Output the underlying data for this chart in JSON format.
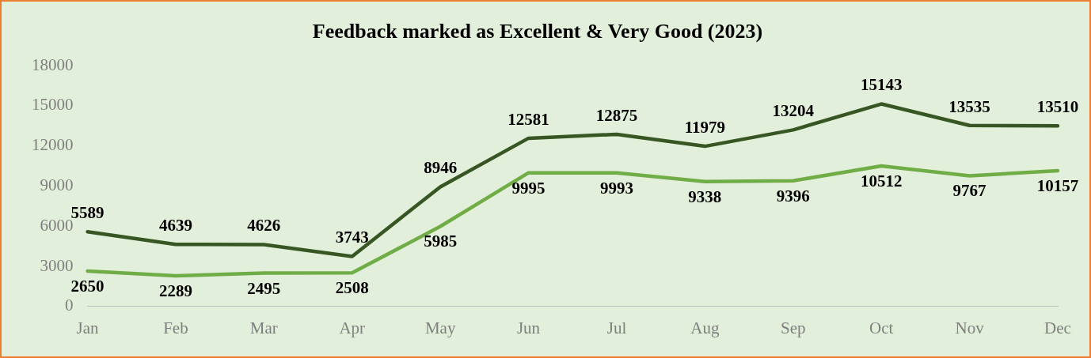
{
  "chart_data": {
    "type": "line",
    "title": "Feedback marked as Excellent & Very Good (2023)",
    "categories": [
      "Jan",
      "Feb",
      "Mar",
      "Apr",
      "May",
      "Jun",
      "Jul",
      "Aug",
      "Sep",
      "Oct",
      "Nov",
      "Dec"
    ],
    "series": [
      {
        "color": "#375623",
        "values": [
          5589,
          4639,
          4626,
          3743,
          8946,
          12581,
          12875,
          11979,
          13204,
          15143,
          13535,
          13510
        ]
      },
      {
        "color": "#70ad47",
        "values": [
          2650,
          2289,
          2495,
          2508,
          5985,
          9995,
          9993,
          9338,
          9396,
          10512,
          9767,
          10157
        ]
      }
    ],
    "ylim": [
      0,
      18000
    ],
    "yticks": [
      0,
      3000,
      6000,
      9000,
      12000,
      15000,
      18000
    ],
    "data_labels": true,
    "marker": "none",
    "line_style": "solid"
  }
}
